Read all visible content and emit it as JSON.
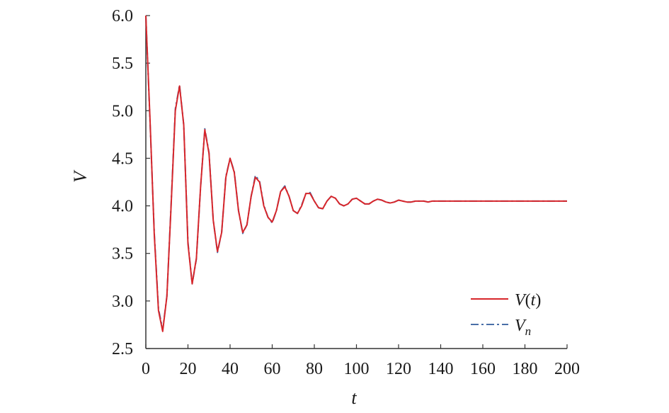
{
  "chart_data": {
    "type": "line",
    "xlabel": "t",
    "ylabel": "V",
    "xlim": [
      0,
      200
    ],
    "ylim": [
      2.5,
      6.0
    ],
    "xticks": [
      "0",
      "20",
      "40",
      "60",
      "80",
      "100",
      "120",
      "140",
      "160",
      "180",
      "200"
    ],
    "yticks": [
      "2.5",
      "3.0",
      "3.5",
      "4.0",
      "4.5",
      "5.0",
      "5.5",
      "6.0"
    ],
    "grid": false,
    "legend_position": "bottom-right",
    "x": [
      0,
      2,
      4,
      6,
      8,
      10,
      12,
      14,
      16,
      18,
      20,
      22,
      24,
      26,
      28,
      30,
      32,
      34,
      36,
      38,
      40,
      42,
      44,
      46,
      48,
      50,
      52,
      54,
      56,
      58,
      60,
      62,
      64,
      66,
      68,
      70,
      72,
      74,
      76,
      78,
      80,
      82,
      84,
      86,
      88,
      90,
      92,
      94,
      96,
      98,
      100,
      102,
      104,
      106,
      108,
      110,
      112,
      114,
      116,
      118,
      120,
      122,
      124,
      126,
      128,
      130,
      132,
      134,
      136,
      138,
      140,
      145,
      150,
      155,
      160,
      165,
      170,
      175,
      180,
      185,
      190,
      195,
      200
    ],
    "series": [
      {
        "name": "V(t)",
        "color": "#d7262b",
        "dash": "solid",
        "values": [
          6.0,
          4.9,
          3.7,
          2.9,
          2.68,
          3.05,
          4.0,
          5.0,
          5.26,
          4.85,
          3.6,
          3.18,
          3.45,
          4.2,
          4.8,
          4.55,
          3.85,
          3.52,
          3.72,
          4.3,
          4.5,
          4.35,
          3.95,
          3.72,
          3.8,
          4.1,
          4.3,
          4.25,
          4.0,
          3.88,
          3.83,
          3.95,
          4.15,
          4.2,
          4.1,
          3.95,
          3.92,
          4.0,
          4.13,
          4.13,
          4.05,
          3.98,
          3.97,
          4.05,
          4.1,
          4.08,
          4.02,
          4.0,
          4.02,
          4.07,
          4.08,
          4.05,
          4.02,
          4.02,
          4.05,
          4.07,
          4.06,
          4.04,
          4.03,
          4.04,
          4.06,
          4.05,
          4.04,
          4.04,
          4.05,
          4.05,
          4.05,
          4.04,
          4.05,
          4.05,
          4.05,
          4.05,
          4.05,
          4.05,
          4.05,
          4.05,
          4.05,
          4.05,
          4.05,
          4.05,
          4.05,
          4.05,
          4.05
        ]
      },
      {
        "name": "Vn",
        "color": "#4a6fa8",
        "dash": "dashed",
        "values": [
          6.0,
          4.88,
          3.72,
          2.92,
          2.7,
          3.05,
          4.02,
          5.02,
          5.27,
          4.85,
          3.62,
          3.18,
          3.44,
          4.2,
          4.81,
          4.56,
          3.85,
          3.51,
          3.72,
          4.31,
          4.5,
          4.36,
          3.95,
          3.71,
          3.8,
          4.1,
          4.32,
          4.26,
          4.01,
          3.88,
          3.82,
          3.95,
          4.15,
          4.21,
          4.1,
          3.95,
          3.92,
          4.01,
          4.13,
          4.14,
          4.05,
          3.98,
          3.97,
          4.05,
          4.1,
          4.08,
          4.02,
          4.0,
          4.02,
          4.07,
          4.08,
          4.05,
          4.02,
          4.02,
          4.05,
          4.07,
          4.06,
          4.04,
          4.03,
          4.04,
          4.06,
          4.05,
          4.04,
          4.04,
          4.05,
          4.05,
          4.05,
          4.04,
          4.05,
          4.05,
          4.05,
          4.05,
          4.05,
          4.05,
          4.05,
          4.05,
          4.05,
          4.05,
          4.05,
          4.05,
          4.05,
          4.05,
          4.05
        ]
      }
    ],
    "legend": {
      "items": [
        {
          "main": "V",
          "rest": "(",
          "italic2": "t",
          "close": ")"
        },
        {
          "main": "V",
          "sub": "n"
        }
      ]
    }
  }
}
